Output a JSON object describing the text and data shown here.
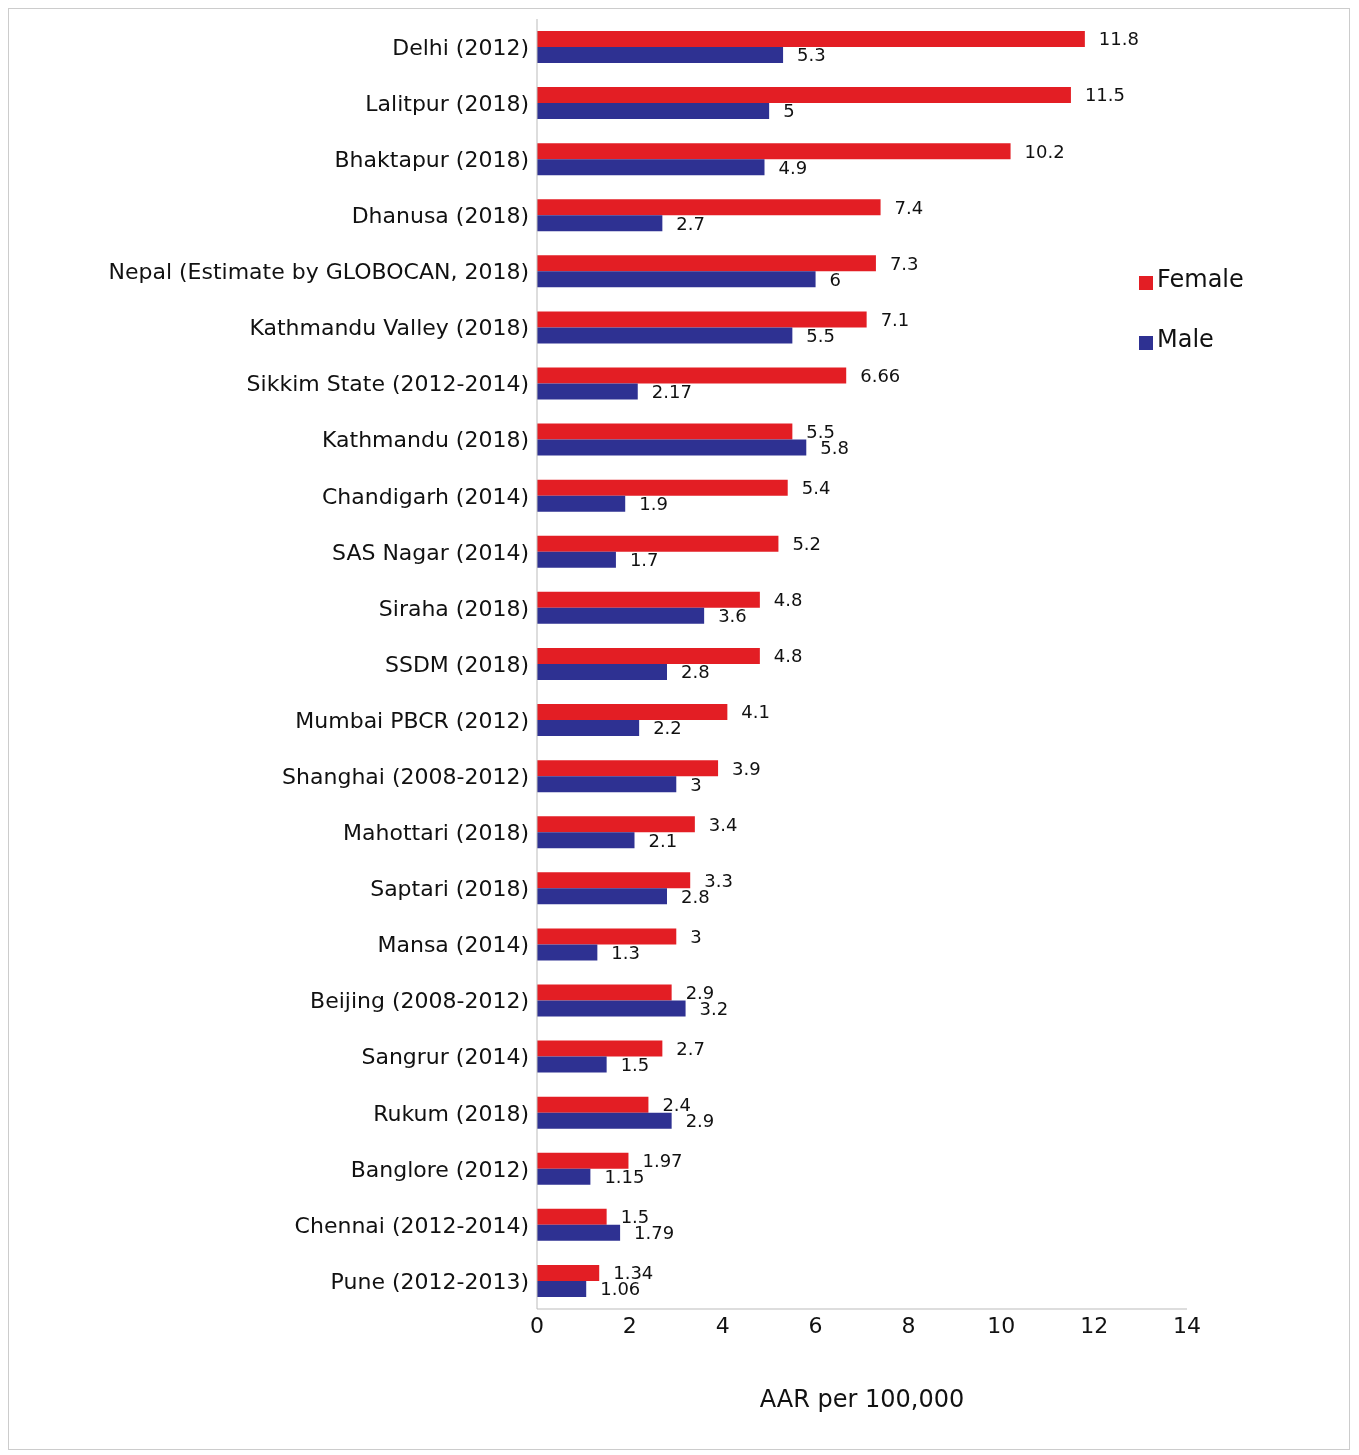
{
  "chart_data": {
    "type": "bar",
    "orientation": "horizontal",
    "xlabel": "AAR per 100,000",
    "categories": [
      "Delhi (2012)",
      "Lalitpur (2018)",
      "Bhaktapur (2018)",
      "Dhanusa (2018)",
      "Nepal (Estimate by GLOBOCAN, 2018)",
      "Kathmandu Valley (2018)",
      "Sikkim State (2012-2014)",
      "Kathmandu (2018)",
      "Chandigarh (2014)",
      "SAS Nagar (2014)",
      "Siraha (2018)",
      "SSDM (2018)",
      "Mumbai PBCR (2012)",
      "Shanghai (2008-2012)",
      "Mahottari (2018)",
      "Saptari (2018)",
      "Mansa (2014)",
      "Beijing (2008-2012)",
      "Sangrur (2014)",
      "Rukum (2018)",
      "Banglore (2012)",
      "Chennai (2012-2014)",
      "Pune (2012-2013)"
    ],
    "series": [
      {
        "name": "Female",
        "color": "#e31e24",
        "values": [
          11.8,
          11.5,
          10.2,
          7.4,
          7.3,
          7.1,
          6.66,
          5.5,
          5.4,
          5.2,
          4.8,
          4.8,
          4.1,
          3.9,
          3.4,
          3.3,
          3,
          2.9,
          2.7,
          2.4,
          1.97,
          1.5,
          1.34
        ]
      },
      {
        "name": "Male",
        "color": "#2e3192",
        "values": [
          5.3,
          5,
          4.9,
          2.7,
          6,
          5.5,
          2.17,
          5.8,
          1.9,
          1.7,
          3.6,
          2.8,
          2.2,
          3,
          2.1,
          2.8,
          1.3,
          3.2,
          1.5,
          2.9,
          1.15,
          1.79,
          1.06
        ]
      }
    ],
    "xlim": [
      0,
      14
    ],
    "xticks": [
      0,
      2,
      4,
      6,
      8,
      10,
      12,
      14
    ],
    "grid": false,
    "legend": "right",
    "data_labels": true
  }
}
